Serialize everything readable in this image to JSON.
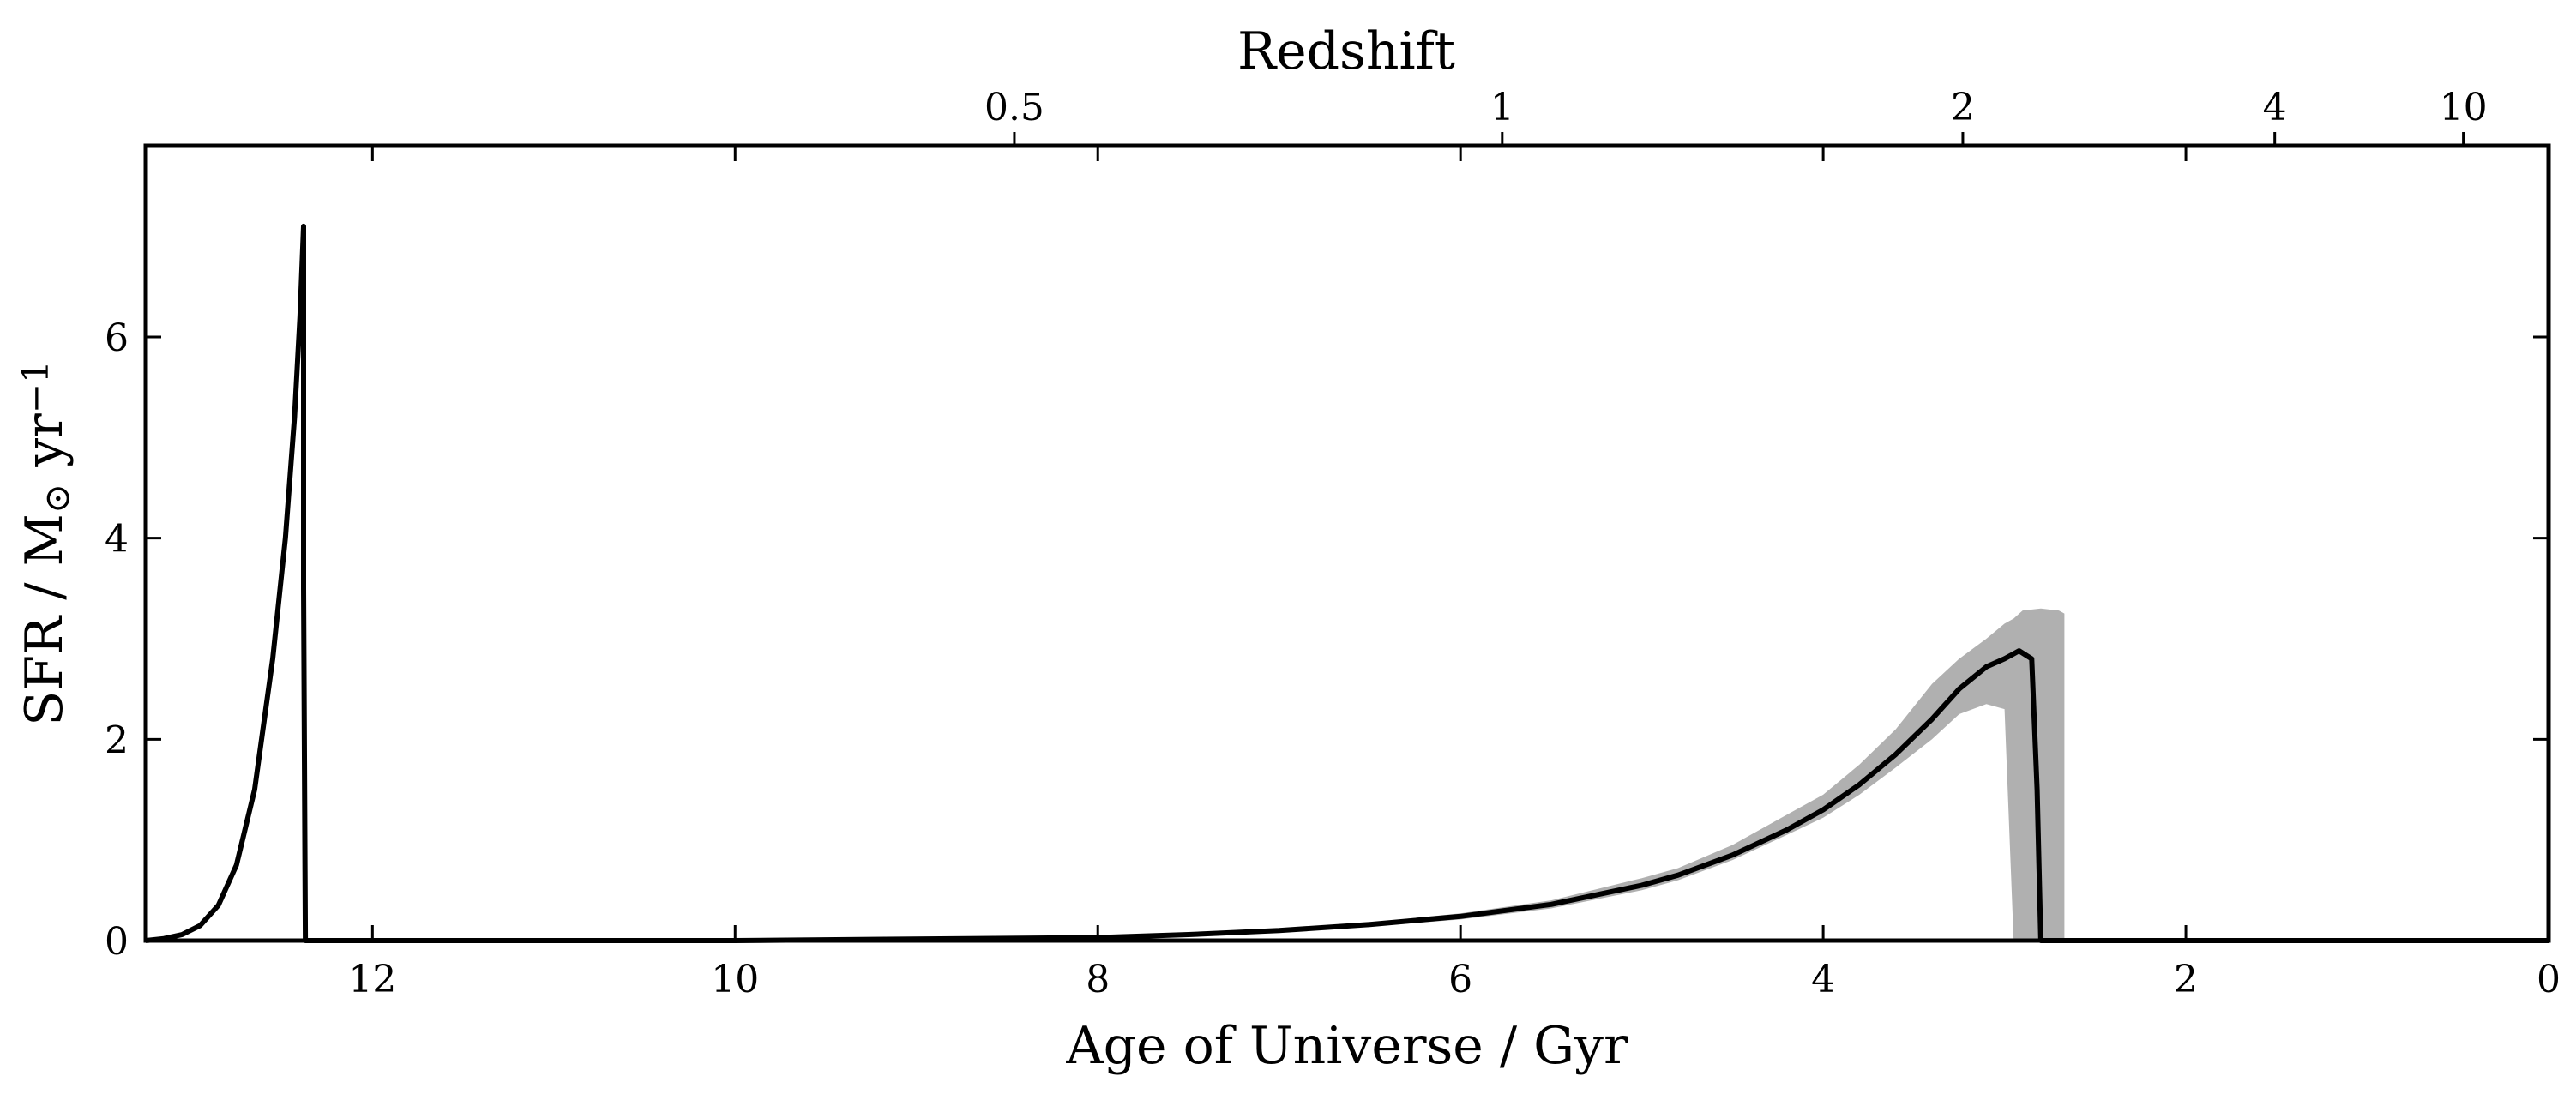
{
  "chart_data": {
    "type": "line",
    "title": "",
    "xlabel": "Age of Universe / Gyr",
    "ylabel": "SFR / M⊙ yr⁻¹",
    "ylabel_parts": {
      "main": "SFR / M",
      "sub": "⊙",
      "mid": " yr",
      "sup": "−1"
    },
    "top_xlabel": "Redshift",
    "xlim": [
      13.25,
      0
    ],
    "ylim": [
      0,
      7.9
    ],
    "x_ticks": [
      12,
      10,
      8,
      6,
      4,
      2,
      0
    ],
    "x_tick_labels": [
      "12",
      "10",
      "8",
      "6",
      "4",
      "2",
      "0"
    ],
    "y_ticks": [
      0,
      2,
      4,
      6
    ],
    "y_tick_labels": [
      "0",
      "2",
      "4",
      "6"
    ],
    "top_ticks": [
      {
        "label": "0.5",
        "age": 8.46
      },
      {
        "label": "1",
        "age": 5.77
      },
      {
        "label": "2",
        "age": 3.23
      },
      {
        "label": "4",
        "age": 1.51
      },
      {
        "label": "10",
        "age": 0.47
      }
    ],
    "grid": false,
    "colors": {
      "line": "#000000",
      "band": "#b0b0b0"
    },
    "series": [
      {
        "x": [
          13.25,
          13.15,
          13.05,
          12.95,
          12.85,
          12.75,
          12.65,
          12.55,
          12.48,
          12.43,
          12.4,
          12.38,
          12.38,
          12.37,
          12.3,
          10.0,
          8.0,
          7.5,
          7.0,
          6.5,
          6.0,
          5.5,
          5.0,
          4.8,
          4.5,
          4.2,
          4.0,
          3.8,
          3.6,
          3.4,
          3.25,
          3.1,
          3.0,
          2.95,
          2.92,
          2.85,
          2.82,
          2.8,
          0.0
        ],
        "y": [
          0.0,
          0.02,
          0.06,
          0.15,
          0.35,
          0.75,
          1.5,
          2.8,
          4.0,
          5.2,
          6.2,
          7.1,
          3.5,
          0.0,
          0.0,
          0.0,
          0.03,
          0.06,
          0.1,
          0.16,
          0.24,
          0.36,
          0.55,
          0.65,
          0.85,
          1.1,
          1.3,
          1.55,
          1.85,
          2.2,
          2.5,
          2.72,
          2.8,
          2.85,
          2.88,
          2.8,
          1.5,
          0.0,
          0.0
        ]
      }
    ],
    "band": {
      "x": [
        7.5,
        7.0,
        6.5,
        6.0,
        5.5,
        5.0,
        4.8,
        4.5,
        4.2,
        4.0,
        3.8,
        3.6,
        3.4,
        3.25,
        3.1,
        3.0,
        2.95,
        2.9,
        2.8,
        2.7,
        2.67
      ],
      "lower": [
        0.05,
        0.09,
        0.14,
        0.21,
        0.32,
        0.5,
        0.6,
        0.8,
        1.05,
        1.22,
        1.45,
        1.72,
        2.0,
        2.25,
        2.35,
        2.3,
        0.0,
        0.0,
        0.0,
        0.0,
        0.0
      ],
      "upper": [
        0.07,
        0.11,
        0.18,
        0.27,
        0.4,
        0.62,
        0.72,
        0.95,
        1.25,
        1.45,
        1.75,
        2.1,
        2.55,
        2.8,
        3.0,
        3.15,
        3.2,
        3.28,
        3.3,
        3.28,
        3.25
      ]
    }
  }
}
